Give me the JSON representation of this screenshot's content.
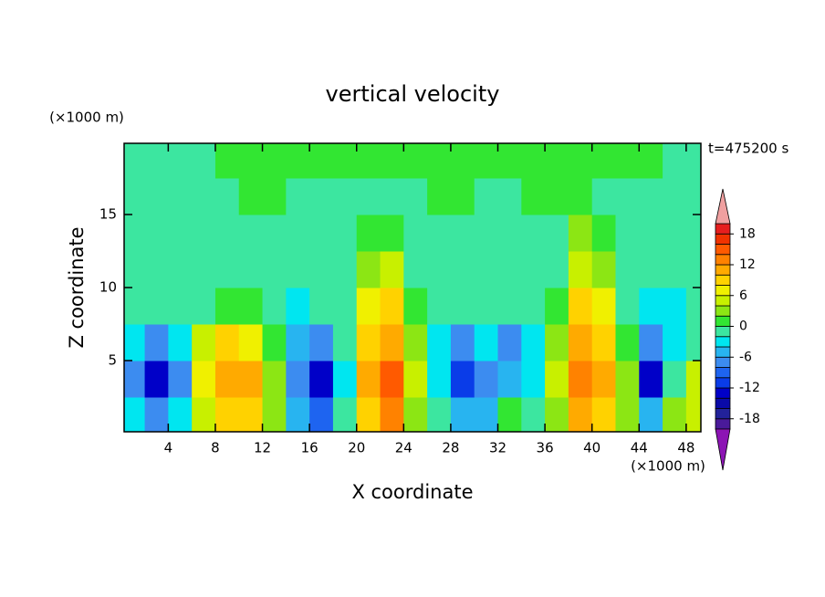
{
  "chart_data": {
    "type": "contour",
    "title": "vertical velocity",
    "xlabel": "X coordinate",
    "ylabel": "Z coordinate",
    "x_unit": "(×1000 m)",
    "y_unit": "(×1000 m)",
    "annotation": "t=475200 s",
    "x": [
      1,
      3,
      5,
      7,
      9,
      11,
      13,
      15,
      17,
      19,
      21,
      23,
      25,
      27,
      29,
      31,
      33,
      35,
      37,
      39,
      41,
      43,
      45,
      47,
      49
    ],
    "y": [
      1.25,
      3.75,
      6.25,
      8.75,
      11.25,
      13.75,
      16.25,
      18.75
    ],
    "z": [
      [
        -3,
        -8,
        -4,
        5,
        9,
        8,
        2,
        -5,
        -9,
        -2,
        9,
        13,
        3,
        -2,
        -6,
        -5,
        1,
        -2,
        3,
        11,
        9,
        2,
        -6,
        2,
        4
      ],
      [
        -8,
        -14,
        -7,
        7,
        11,
        11,
        3,
        -8,
        -13,
        -4,
        10,
        15,
        4,
        -4,
        -12,
        -8,
        -5,
        -4,
        5,
        13,
        11,
        2,
        -13,
        -2,
        5
      ],
      [
        -4,
        -7,
        -3,
        4,
        8,
        7,
        1,
        -6,
        -7,
        -2,
        9,
        11,
        2,
        -3,
        -7,
        -4,
        -8,
        -3,
        3,
        11,
        9,
        1,
        -8,
        -3,
        -1
      ],
      [
        -2,
        -2,
        -2,
        -1,
        1,
        1,
        -1,
        -3,
        -2,
        -1,
        7,
        8,
        1,
        -2,
        -2,
        -2,
        -2,
        -2,
        1,
        8,
        6,
        -1,
        -3,
        -3,
        -2
      ],
      [
        -1,
        -1,
        -1,
        -1,
        -1,
        -1,
        -1,
        -1,
        -1,
        -1,
        3,
        4,
        -1,
        -1,
        -1,
        -1,
        -1,
        -1,
        -1,
        5,
        3,
        -1,
        -1,
        -1,
        -1
      ],
      [
        -1,
        -1,
        -1,
        -1,
        -1,
        -1,
        -1,
        -1,
        -1,
        -1,
        1,
        1,
        -1,
        -1,
        -1,
        -1,
        -1,
        -1,
        -1,
        2,
        1,
        -1,
        -1,
        -1,
        -1
      ],
      [
        -1,
        -1,
        -1,
        -1,
        -1,
        1,
        1,
        -1,
        -1,
        -1,
        -1,
        -1,
        -1,
        1,
        1,
        -1,
        -1,
        1,
        1,
        1,
        -1,
        -1,
        -1,
        -1,
        -1
      ],
      [
        -1,
        -1,
        -1,
        -1,
        1,
        1,
        1,
        1,
        1,
        1,
        1,
        1,
        1,
        1,
        1,
        1,
        1,
        1,
        1,
        1,
        1,
        1,
        1,
        -1,
        -1
      ]
    ],
    "xlim": [
      0.25,
      49.25
    ],
    "ylim": [
      0.125,
      19.875
    ],
    "xticks": [
      4,
      8,
      12,
      16,
      20,
      24,
      28,
      32,
      36,
      40,
      44,
      48
    ],
    "yticks": [
      5,
      10,
      15
    ],
    "colorbar": {
      "levels": [
        -20,
        -18,
        -16,
        -14,
        -12,
        -10,
        -8,
        -6,
        -4,
        -2,
        0,
        2,
        4,
        6,
        8,
        10,
        12,
        14,
        16,
        18,
        20
      ],
      "colors": [
        "#4a1a9a",
        "#22229a",
        "#0a0aa8",
        "#0000c8",
        "#0a3ce8",
        "#1e64f0",
        "#3c8cf0",
        "#28b4f0",
        "#00e6f0",
        "#3ce6a0",
        "#32e632",
        "#8ce614",
        "#c8f000",
        "#f0f000",
        "#ffd200",
        "#ffaa00",
        "#ff8200",
        "#ff5a00",
        "#f03200",
        "#e61e1e"
      ],
      "under_color": "#8c14b4",
      "over_color": "#f0a0a0",
      "ticks": [
        -18,
        -12,
        -6,
        0,
        6,
        12,
        18
      ]
    }
  }
}
